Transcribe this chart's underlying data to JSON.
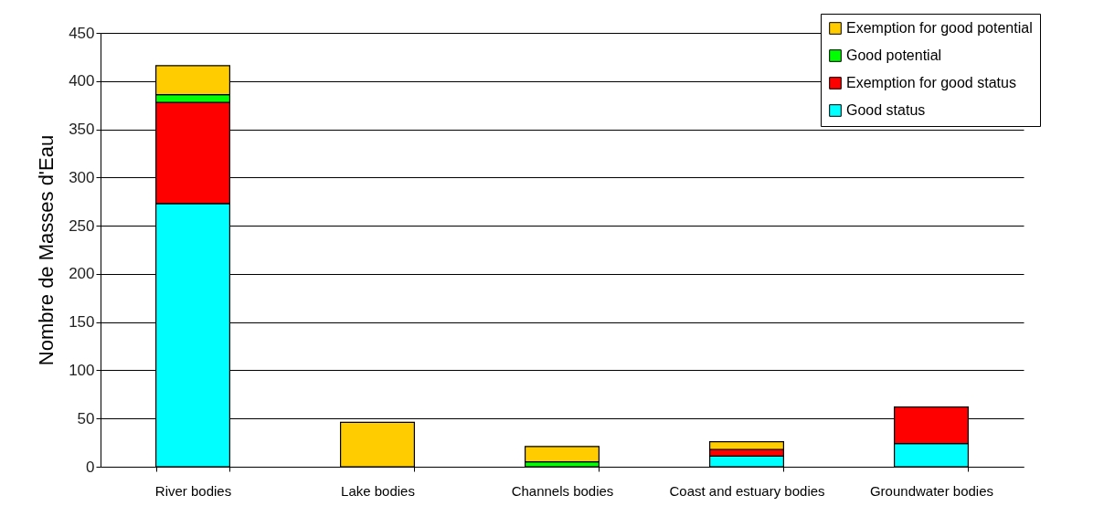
{
  "chart_data": {
    "type": "bar",
    "ylabel": "Nombre de Masses d'Eau",
    "categories": [
      "River bodies",
      "Lake bodies",
      "Channels bodies",
      "Coast and estuary bodies",
      "Groundwater bodies"
    ],
    "stacked": true,
    "series": [
      {
        "name": "Good status",
        "color": "#00ffff",
        "values": [
          273,
          null,
          null,
          11,
          24
        ]
      },
      {
        "name": "Exemption for good status",
        "color": "#ff0000",
        "values": [
          105,
          null,
          null,
          7,
          38
        ]
      },
      {
        "name": "Good potential",
        "color": "#00ff00",
        "values": [
          8,
          null,
          5,
          null,
          null
        ]
      },
      {
        "name": "Exemption for good potential",
        "color": "#ffcc00",
        "values": [
          30,
          46,
          16,
          8,
          null
        ]
      }
    ],
    "ylim": [
      0,
      450
    ],
    "yticks": [
      0,
      50,
      100,
      150,
      200,
      250,
      300,
      350,
      400,
      450
    ],
    "grid": "y",
    "legend": "top right"
  }
}
